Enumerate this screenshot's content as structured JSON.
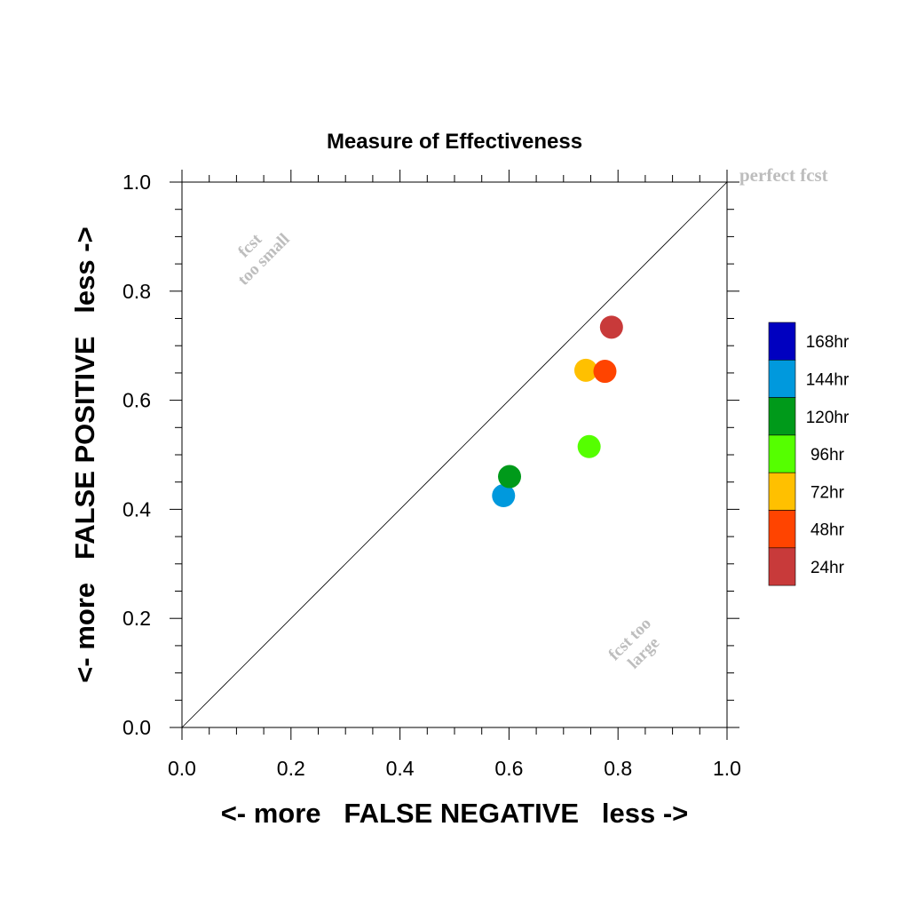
{
  "chart_data": {
    "type": "scatter",
    "title": "Measure of Effectiveness",
    "xlabel": "<- more   FALSE NEGATIVE   less ->",
    "ylabel": "<- more   FALSE POSITIVE   less ->",
    "xlim": [
      0.0,
      1.0
    ],
    "ylim": [
      0.0,
      1.0
    ],
    "x_ticks": [
      "0.0",
      "0.2",
      "0.4",
      "0.6",
      "0.8",
      "1.0"
    ],
    "y_ticks": [
      "0.0",
      "0.2",
      "0.4",
      "0.6",
      "0.8",
      "1.0"
    ],
    "grid": false,
    "legend_position": "right",
    "reference_line": {
      "from": [
        0.0,
        0.0
      ],
      "to": [
        1.0,
        1.0
      ]
    },
    "annotations": {
      "perfect": "perfect fcst",
      "too_small_line1": "fcst",
      "too_small_line2": "too small",
      "too_large_line1": "fcst too",
      "too_large_line2": "large"
    },
    "series": [
      {
        "name": "168hr",
        "color": "#0000c0",
        "x": null,
        "y": null
      },
      {
        "name": "144hr",
        "color": "#0099dd",
        "x": 0.59,
        "y": 0.425
      },
      {
        "name": "120hr",
        "color": "#009a1a",
        "x": 0.601,
        "y": 0.46
      },
      {
        "name": "96hr",
        "color": "#55ff00",
        "x": 0.747,
        "y": 0.515
      },
      {
        "name": "72hr",
        "color": "#ffc000",
        "x": 0.741,
        "y": 0.655
      },
      {
        "name": "48hr",
        "color": "#ff4400",
        "x": 0.776,
        "y": 0.653
      },
      {
        "name": "24hr",
        "color": "#c83a3a",
        "x": 0.788,
        "y": 0.734
      }
    ]
  }
}
